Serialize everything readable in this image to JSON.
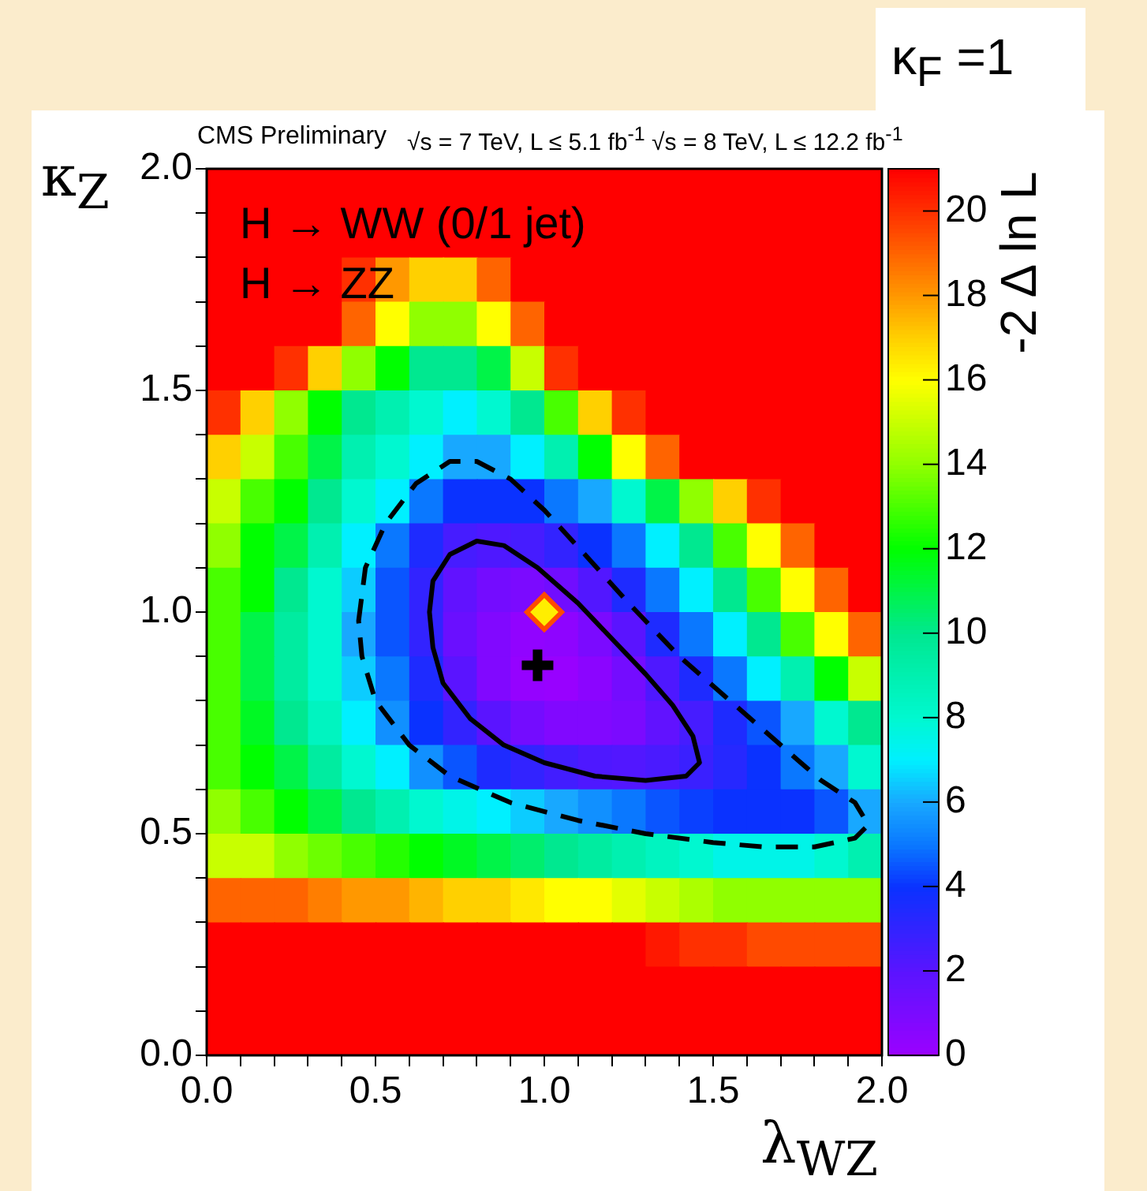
{
  "chart_data": {
    "type": "heatmap",
    "title": "CMS Preliminary",
    "subtitle": "√s = 7 TeV, L ≤ 5.1 fb$^{-1}$  √s = 8 TeV, L ≤ 12.2 fb$^{-1}$",
    "xlabel": "λ$_{WZ}$",
    "ylabel": "κ$_{Z}$",
    "clabel": "-2 Δ ln L",
    "annotations": [
      "H → WW (0/1 jet)",
      "H → ZZ",
      "κ$_{F}$ =1"
    ],
    "x": [
      0.05,
      0.15,
      0.25,
      0.35,
      0.45,
      0.55,
      0.65,
      0.75,
      0.85,
      0.95,
      1.05,
      1.15,
      1.25,
      1.35,
      1.45,
      1.55,
      1.65,
      1.75,
      1.85,
      1.95
    ],
    "y": [
      1.95,
      1.85,
      1.75,
      1.65,
      1.55,
      1.45,
      1.35,
      1.25,
      1.15,
      1.05,
      0.95,
      0.85,
      0.75,
      0.65,
      0.55,
      0.45,
      0.35,
      0.25,
      0.15,
      0.05
    ],
    "cells": [
      [
        21,
        21,
        21,
        21,
        21,
        21,
        21,
        21,
        21,
        21,
        21,
        21,
        21,
        21,
        21,
        21,
        21,
        21,
        21,
        21
      ],
      [
        21,
        21,
        21,
        21,
        21,
        21,
        21,
        21,
        21,
        21,
        21,
        21,
        21,
        21,
        21,
        21,
        21,
        21,
        21,
        21
      ],
      [
        21,
        21,
        21,
        21,
        20,
        18,
        17,
        17,
        19,
        21,
        21,
        21,
        21,
        21,
        21,
        21,
        21,
        21,
        21,
        21
      ],
      [
        21,
        21,
        21,
        21,
        19,
        16,
        14,
        14,
        16,
        19,
        21,
        21,
        21,
        21,
        21,
        21,
        21,
        21,
        21,
        21
      ],
      [
        21,
        21,
        20,
        17,
        14,
        12,
        10,
        10,
        11,
        15,
        20,
        21,
        21,
        21,
        21,
        21,
        21,
        21,
        21,
        21
      ],
      [
        20,
        17,
        14,
        12,
        10,
        9,
        8,
        7,
        8,
        10,
        13,
        17,
        20,
        21,
        21,
        21,
        21,
        21,
        21,
        21
      ],
      [
        17,
        15,
        13,
        11,
        9,
        8,
        7,
        6,
        6,
        7,
        9,
        12,
        16,
        19,
        21,
        21,
        21,
        21,
        21,
        21
      ],
      [
        15,
        13,
        12,
        10,
        8,
        7,
        5,
        4,
        4,
        4,
        5,
        6,
        8,
        11,
        14,
        17,
        20,
        21,
        21,
        21
      ],
      [
        14,
        12,
        11,
        9,
        7,
        5,
        3.5,
        2.5,
        2.3,
        2.5,
        3,
        4,
        5,
        7,
        10,
        13,
        16,
        19,
        21,
        21
      ],
      [
        13,
        12,
        10,
        8,
        6.5,
        4.5,
        3,
        1.8,
        1.2,
        1,
        1.3,
        2.2,
        3.5,
        5,
        7,
        10,
        13,
        16,
        19,
        21
      ],
      [
        13,
        11,
        9.5,
        8,
        6,
        4.5,
        3,
        1.5,
        0.8,
        0.3,
        0.4,
        1,
        2,
        3.5,
        5,
        7,
        10,
        13,
        16,
        19
      ],
      [
        13,
        11,
        9.5,
        8,
        6.5,
        5,
        3.5,
        2,
        0.8,
        0.2,
        0.1,
        0.5,
        1.2,
        2.3,
        3.5,
        5,
        7,
        9,
        12,
        15
      ],
      [
        13,
        11.5,
        10,
        8.5,
        7,
        5.5,
        4,
        3,
        2,
        1.2,
        0.8,
        0.8,
        1,
        1.8,
        2.5,
        3.5,
        4.5,
        6,
        8,
        10
      ],
      [
        13,
        12,
        11,
        9.5,
        8,
        7,
        5.5,
        4.5,
        3.5,
        3,
        2.6,
        2.3,
        2.2,
        2.4,
        2.8,
        3.3,
        4,
        5,
        6,
        8
      ],
      [
        14,
        13,
        12,
        11,
        10,
        9,
        8,
        7.5,
        7,
        6.5,
        6,
        5.5,
        5,
        4.5,
        4.2,
        4,
        4,
        4,
        4.5,
        6
      ],
      [
        15,
        15,
        14,
        13.5,
        13,
        12.5,
        12,
        11.5,
        11,
        10.5,
        10,
        9.5,
        9,
        8.5,
        8,
        7.5,
        7.5,
        7.5,
        8,
        9
      ],
      [
        19,
        19,
        19,
        18.5,
        18,
        18,
        17.5,
        17,
        17,
        16.5,
        16,
        16,
        15.5,
        15,
        14.5,
        14,
        14,
        14,
        14,
        14
      ],
      [
        21,
        21,
        21,
        21,
        21,
        21,
        21,
        21,
        21,
        21,
        21,
        21,
        21,
        20.5,
        20,
        20,
        19.5,
        19.5,
        19.5,
        19.5
      ],
      [
        21,
        21,
        21,
        21,
        21,
        21,
        21,
        21,
        21,
        21,
        21,
        21,
        21,
        21,
        21,
        21,
        21,
        21,
        21,
        21
      ],
      [
        21,
        21,
        21,
        21,
        21,
        21,
        21,
        21,
        21,
        21,
        21,
        21,
        21,
        21,
        21,
        21,
        21,
        21,
        21,
        21
      ]
    ],
    "clim": [
      0,
      21
    ],
    "cticks": [
      0,
      2,
      4,
      6,
      8,
      10,
      12,
      14,
      16,
      18,
      20
    ],
    "xlim": [
      0,
      2
    ],
    "ylim": [
      0,
      2
    ],
    "xticks": [
      {
        "value": 0,
        "label": "0.0"
      },
      {
        "value": 0.1,
        "label": null
      },
      {
        "value": 0.2,
        "label": null
      },
      {
        "value": 0.3,
        "label": null
      },
      {
        "value": 0.4,
        "label": null
      },
      {
        "value": 0.5,
        "label": "0.5"
      },
      {
        "value": 0.6,
        "label": null
      },
      {
        "value": 0.7,
        "label": null
      },
      {
        "value": 0.8,
        "label": null
      },
      {
        "value": 0.9,
        "label": null
      },
      {
        "value": 1,
        "label": "1.0"
      },
      {
        "value": 1.1,
        "label": null
      },
      {
        "value": 1.2,
        "label": null
      },
      {
        "value": 1.3,
        "label": null
      },
      {
        "value": 1.4,
        "label": null
      },
      {
        "value": 1.5,
        "label": "1.5"
      },
      {
        "value": 1.6,
        "label": null
      },
      {
        "value": 1.7,
        "label": null
      },
      {
        "value": 1.8,
        "label": null
      },
      {
        "value": 1.9,
        "label": null
      },
      {
        "value": 2,
        "label": "2.0"
      }
    ],
    "yticks": [
      {
        "value": 0,
        "label": "0.0"
      },
      {
        "value": 0.1,
        "label": null
      },
      {
        "value": 0.2,
        "label": null
      },
      {
        "value": 0.3,
        "label": null
      },
      {
        "value": 0.4,
        "label": null
      },
      {
        "value": 0.5,
        "label": "0.5"
      },
      {
        "value": 0.6,
        "label": null
      },
      {
        "value": 0.7,
        "label": null
      },
      {
        "value": 0.8,
        "label": null
      },
      {
        "value": 0.9,
        "label": null
      },
      {
        "value": 1,
        "label": "1.0"
      },
      {
        "value": 1.1,
        "label": null
      },
      {
        "value": 1.2,
        "label": null
      },
      {
        "value": 1.3,
        "label": null
      },
      {
        "value": 1.4,
        "label": null
      },
      {
        "value": 1.5,
        "label": "1.5"
      },
      {
        "value": 1.6,
        "label": null
      },
      {
        "value": 1.7,
        "label": null
      },
      {
        "value": 1.8,
        "label": null
      },
      {
        "value": 1.9,
        "label": null
      },
      {
        "value": 2,
        "label": "2.0"
      }
    ],
    "series": [
      {
        "type": "scatter",
        "color": "#000000",
        "marker": "cross",
        "x": [
          0.98
        ],
        "values": [
          0.88
        ]
      },
      {
        "type": "scatter",
        "color": "#ffee00",
        "marker": "diamond",
        "x": [
          1
        ],
        "values": [
          1
        ]
      }
    ]
  }
}
